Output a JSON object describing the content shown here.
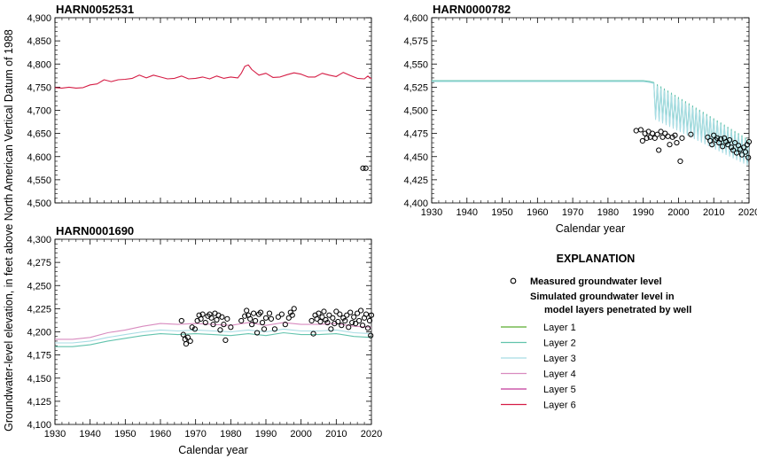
{
  "chart_data": {
    "type": "line",
    "ylabel": "Groundwater-level elevation, in feet above North American Vertical Datum of 1988",
    "xlabel": "Calendar year",
    "series_styles": [
      {
        "name": "Layer 1",
        "color": "#5aac2e"
      },
      {
        "name": "Layer 2",
        "color": "#62c3ad"
      },
      {
        "name": "Layer 3",
        "color": "#a8dce4"
      },
      {
        "name": "Layer 4",
        "color": "#d88bbf"
      },
      {
        "name": "Layer 5",
        "color": "#c2399a"
      },
      {
        "name": "Layer 6",
        "color": "#d51d45"
      }
    ],
    "measured_label": "Measured groundwater level",
    "panels": [
      {
        "title": "HARN0052531",
        "xlim": [
          1930,
          2020
        ],
        "ylim": [
          4500,
          4900
        ],
        "xticks": [
          "1930",
          "1940",
          "1950",
          "1960",
          "1970",
          "1980",
          "1990",
          "2000",
          "2010",
          "2020"
        ],
        "xticks_shown": false,
        "yticks": [
          "4,500",
          "4,550",
          "4,600",
          "4,650",
          "4,700",
          "4,750",
          "4,800",
          "4,850",
          "4,900"
        ],
        "xlabel_shown": false,
        "series": [
          {
            "layer": "Layer 6",
            "x": [
              1930,
              1932,
              1934,
              1936,
              1938,
              1940,
              1942,
              1944,
              1946,
              1948,
              1950,
              1952,
              1954,
              1956,
              1958,
              1960,
              1962,
              1964,
              1966,
              1968,
              1970,
              1972,
              1974,
              1976,
              1978,
              1980,
              1982,
              1983,
              1984,
              1985,
              1986,
              1988,
              1990,
              1992,
              1994,
              1996,
              1998,
              2000,
              2002,
              2004,
              2006,
              2008,
              2010,
              2012,
              2014,
              2016,
              2018,
              2019,
              2020
            ],
            "y": [
              4749,
              4748,
              4750,
              4748,
              4749,
              4755,
              4757,
              4766,
              4762,
              4766,
              4767,
              4769,
              4776,
              4770,
              4776,
              4772,
              4768,
              4769,
              4774,
              4768,
              4769,
              4772,
              4768,
              4774,
              4769,
              4772,
              4770,
              4780,
              4795,
              4798,
              4788,
              4776,
              4780,
              4771,
              4772,
              4777,
              4781,
              4778,
              4772,
              4772,
              4780,
              4776,
              4773,
              4782,
              4775,
              4769,
              4768,
              4774,
              4768
            ]
          }
        ],
        "measured": [
          {
            "x": 2017.6,
            "y": 4575
          },
          {
            "x": 2018.4,
            "y": 4575
          }
        ]
      },
      {
        "title": "HARN0000782",
        "xlim": [
          1930,
          2020
        ],
        "ylim": [
          4400,
          4600
        ],
        "xticks": [
          "1930",
          "1940",
          "1950",
          "1960",
          "1970",
          "1980",
          "1990",
          "2000",
          "2010",
          "2020"
        ],
        "xticks_shown": true,
        "yticks": [
          "4,400",
          "4,425",
          "4,450",
          "4,475",
          "4,500",
          "4,525",
          "4,550",
          "4,575",
          "4,600"
        ],
        "xlabel_shown": true,
        "series": [
          {
            "layer": "Layer 2",
            "x": [
              1930,
              1960,
              1990,
              1992,
              1993
            ],
            "y": [
              4532,
              4532,
              4532,
              4531,
              4530
            ],
            "oscillate": {
              "from": 1993,
              "to": 2020,
              "period": 1.0,
              "upper_start": 4530,
              "upper_end": 4468,
              "lower_start": 4493,
              "lower_end": 4442
            }
          },
          {
            "layer": "Layer 3",
            "x": [
              1930,
              1960,
              1990,
              1992,
              1993
            ],
            "y": [
              4531,
              4531,
              4531,
              4530,
              4529
            ],
            "oscillate": {
              "from": 1993,
              "to": 2020,
              "period": 1.0,
              "upper_start": 4528,
              "upper_end": 4466,
              "lower_start": 4491,
              "lower_end": 4440
            }
          }
        ],
        "measured": [
          {
            "x": 1988.0,
            "y": 4478
          },
          {
            "x": 1989.3,
            "y": 4479
          },
          {
            "x": 1989.8,
            "y": 4467
          },
          {
            "x": 1990.5,
            "y": 4475
          },
          {
            "x": 1991.0,
            "y": 4470
          },
          {
            "x": 1991.5,
            "y": 4477
          },
          {
            "x": 1992.0,
            "y": 4471
          },
          {
            "x": 1992.6,
            "y": 4475
          },
          {
            "x": 1993.3,
            "y": 4470
          },
          {
            "x": 1994.0,
            "y": 4474
          },
          {
            "x": 1994.4,
            "y": 4457
          },
          {
            "x": 1995.0,
            "y": 4477
          },
          {
            "x": 1995.5,
            "y": 4471
          },
          {
            "x": 1996.2,
            "y": 4475
          },
          {
            "x": 1997.0,
            "y": 4472
          },
          {
            "x": 1997.5,
            "y": 4463
          },
          {
            "x": 1998.3,
            "y": 4471
          },
          {
            "x": 1999.0,
            "y": 4473
          },
          {
            "x": 1999.5,
            "y": 4465
          },
          {
            "x": 2000.5,
            "y": 4445
          },
          {
            "x": 2001.0,
            "y": 4470
          },
          {
            "x": 2003.5,
            "y": 4474
          },
          {
            "x": 2008.3,
            "y": 4471
          },
          {
            "x": 2009.0,
            "y": 4467
          },
          {
            "x": 2009.5,
            "y": 4463
          },
          {
            "x": 2010.0,
            "y": 4473
          },
          {
            "x": 2010.5,
            "y": 4468
          },
          {
            "x": 2011.0,
            "y": 4470
          },
          {
            "x": 2011.5,
            "y": 4465
          },
          {
            "x": 2012.0,
            "y": 4469
          },
          {
            "x": 2012.5,
            "y": 4461
          },
          {
            "x": 2013.0,
            "y": 4470
          },
          {
            "x": 2013.5,
            "y": 4466
          },
          {
            "x": 2014.0,
            "y": 4463
          },
          {
            "x": 2014.5,
            "y": 4468
          },
          {
            "x": 2015.0,
            "y": 4460
          },
          {
            "x": 2015.5,
            "y": 4457
          },
          {
            "x": 2016.0,
            "y": 4465
          },
          {
            "x": 2016.5,
            "y": 4454
          },
          {
            "x": 2017.0,
            "y": 4462
          },
          {
            "x": 2017.5,
            "y": 4458
          },
          {
            "x": 2018.0,
            "y": 4452
          },
          {
            "x": 2018.5,
            "y": 4460
          },
          {
            "x": 2019.0,
            "y": 4455
          },
          {
            "x": 2019.5,
            "y": 4463
          },
          {
            "x": 2019.8,
            "y": 4449
          },
          {
            "x": 2020.0,
            "y": 4466
          }
        ]
      },
      {
        "title": "HARN0001690",
        "xlim": [
          1930,
          2020
        ],
        "ylim": [
          4100,
          4300
        ],
        "xticks": [
          "1930",
          "1940",
          "1950",
          "1960",
          "1970",
          "1980",
          "1990",
          "2000",
          "2010",
          "2020"
        ],
        "xticks_shown": true,
        "yticks": [
          "4,100",
          "4,125",
          "4,150",
          "4,175",
          "4,200",
          "4,225",
          "4,250",
          "4,275",
          "4,300"
        ],
        "xlabel_shown": true,
        "series": [
          {
            "layer": "Layer 2",
            "x": [
              1930,
              1935,
              1940,
              1945,
              1950,
              1955,
              1960,
              1965,
              1970,
              1975,
              1980,
              1985,
              1990,
              1995,
              2000,
              2005,
              2010,
              2015,
              2020
            ],
            "y": [
              4184,
              4184,
              4186,
              4190,
              4193,
              4196,
              4198,
              4197,
              4198,
              4197,
              4196,
              4198,
              4196,
              4199,
              4197,
              4197,
              4198,
              4195,
              4194
            ]
          },
          {
            "layer": "Layer 3",
            "x": [
              1930,
              1935,
              1940,
              1945,
              1950,
              1955,
              1960,
              1965,
              1970,
              1975,
              1980,
              1985,
              1990,
              1995,
              2000,
              2005,
              2010,
              2015,
              2020
            ],
            "y": [
              4188,
              4188,
              4190,
              4194,
              4197,
              4200,
              4202,
              4201,
              4202,
              4201,
              4200,
              4202,
              4200,
              4203,
              4201,
              4201,
              4202,
              4199,
              4198
            ]
          },
          {
            "layer": "Layer 4",
            "x": [
              1930,
              1935,
              1940,
              1945,
              1950,
              1955,
              1960,
              1965,
              1970,
              1975,
              1980,
              1985,
              1990,
              1995,
              2000,
              2005,
              2010,
              2015,
              2020
            ],
            "y": [
              4192,
              4192,
              4194,
              4199,
              4202,
              4206,
              4209,
              4208,
              4209,
              4208,
              4207,
              4210,
              4207,
              4210,
              4208,
              4208,
              4209,
              4206,
              4205
            ]
          }
        ],
        "measured": [
          {
            "x": 1966.0,
            "y": 4212
          },
          {
            "x": 1966.5,
            "y": 4197
          },
          {
            "x": 1967.0,
            "y": 4192
          },
          {
            "x": 1967.3,
            "y": 4187
          },
          {
            "x": 1967.8,
            "y": 4194
          },
          {
            "x": 1968.5,
            "y": 4190
          },
          {
            "x": 1969.0,
            "y": 4205
          },
          {
            "x": 1969.8,
            "y": 4203
          },
          {
            "x": 1970.5,
            "y": 4212
          },
          {
            "x": 1971.0,
            "y": 4218
          },
          {
            "x": 1971.5,
            "y": 4214
          },
          {
            "x": 1972.0,
            "y": 4219
          },
          {
            "x": 1972.8,
            "y": 4210
          },
          {
            "x": 1973.5,
            "y": 4217
          },
          {
            "x": 1974.0,
            "y": 4219
          },
          {
            "x": 1974.5,
            "y": 4215
          },
          {
            "x": 1975.0,
            "y": 4208
          },
          {
            "x": 1975.5,
            "y": 4220
          },
          {
            "x": 1976.0,
            "y": 4213
          },
          {
            "x": 1976.5,
            "y": 4218
          },
          {
            "x": 1977.0,
            "y": 4202
          },
          {
            "x": 1977.5,
            "y": 4216
          },
          {
            "x": 1978.0,
            "y": 4208
          },
          {
            "x": 1978.5,
            "y": 4191
          },
          {
            "x": 1979.0,
            "y": 4214
          },
          {
            "x": 1980.0,
            "y": 4205
          },
          {
            "x": 1983.0,
            "y": 4212
          },
          {
            "x": 1984.0,
            "y": 4217
          },
          {
            "x": 1984.5,
            "y": 4223
          },
          {
            "x": 1985.0,
            "y": 4218
          },
          {
            "x": 1985.5,
            "y": 4214
          },
          {
            "x": 1986.0,
            "y": 4208
          },
          {
            "x": 1986.5,
            "y": 4220
          },
          {
            "x": 1987.0,
            "y": 4212
          },
          {
            "x": 1987.5,
            "y": 4199
          },
          {
            "x": 1988.0,
            "y": 4219
          },
          {
            "x": 1988.5,
            "y": 4221
          },
          {
            "x": 1989.0,
            "y": 4210
          },
          {
            "x": 1989.5,
            "y": 4203
          },
          {
            "x": 1990.0,
            "y": 4215
          },
          {
            "x": 1991.0,
            "y": 4220
          },
          {
            "x": 1991.5,
            "y": 4214
          },
          {
            "x": 1992.5,
            "y": 4203
          },
          {
            "x": 1993.5,
            "y": 4216
          },
          {
            "x": 1994.5,
            "y": 4219
          },
          {
            "x": 1995.5,
            "y": 4208
          },
          {
            "x": 1996.5,
            "y": 4215
          },
          {
            "x": 1997.0,
            "y": 4221
          },
          {
            "x": 1997.5,
            "y": 4218
          },
          {
            "x": 1998.0,
            "y": 4225
          },
          {
            "x": 2003.0,
            "y": 4212
          },
          {
            "x": 2003.5,
            "y": 4198
          },
          {
            "x": 2004.0,
            "y": 4218
          },
          {
            "x": 2004.5,
            "y": 4214
          },
          {
            "x": 2005.0,
            "y": 4220
          },
          {
            "x": 2005.5,
            "y": 4211
          },
          {
            "x": 2006.0,
            "y": 4216
          },
          {
            "x": 2006.5,
            "y": 4222
          },
          {
            "x": 2007.0,
            "y": 4213
          },
          {
            "x": 2007.5,
            "y": 4210
          },
          {
            "x": 2008.0,
            "y": 4218
          },
          {
            "x": 2008.5,
            "y": 4203
          },
          {
            "x": 2009.0,
            "y": 4215
          },
          {
            "x": 2009.5,
            "y": 4209
          },
          {
            "x": 2010.0,
            "y": 4222
          },
          {
            "x": 2010.5,
            "y": 4211
          },
          {
            "x": 2011.0,
            "y": 4219
          },
          {
            "x": 2011.5,
            "y": 4207
          },
          {
            "x": 2012.0,
            "y": 4215
          },
          {
            "x": 2012.5,
            "y": 4212
          },
          {
            "x": 2013.0,
            "y": 4218
          },
          {
            "x": 2013.5,
            "y": 4205
          },
          {
            "x": 2014.0,
            "y": 4221
          },
          {
            "x": 2014.5,
            "y": 4210
          },
          {
            "x": 2015.0,
            "y": 4216
          },
          {
            "x": 2015.5,
            "y": 4209
          },
          {
            "x": 2016.0,
            "y": 4220
          },
          {
            "x": 2016.5,
            "y": 4212
          },
          {
            "x": 2017.0,
            "y": 4223
          },
          {
            "x": 2017.5,
            "y": 4207
          },
          {
            "x": 2018.0,
            "y": 4215
          },
          {
            "x": 2018.5,
            "y": 4219
          },
          {
            "x": 2019.0,
            "y": 4204
          },
          {
            "x": 2019.5,
            "y": 4212
          },
          {
            "x": 2019.8,
            "y": 4196
          },
          {
            "x": 2020.0,
            "y": 4218
          }
        ]
      }
    ],
    "legend": {
      "title": "EXPLANATION",
      "measured": "Measured groundwater level",
      "simulated_line1": "Simulated groundwater level in",
      "simulated_line2": "model layers penetrated by well",
      "layers": [
        "Layer 1",
        "Layer 2",
        "Layer 3",
        "Layer 4",
        "Layer 5",
        "Layer 6"
      ]
    }
  }
}
